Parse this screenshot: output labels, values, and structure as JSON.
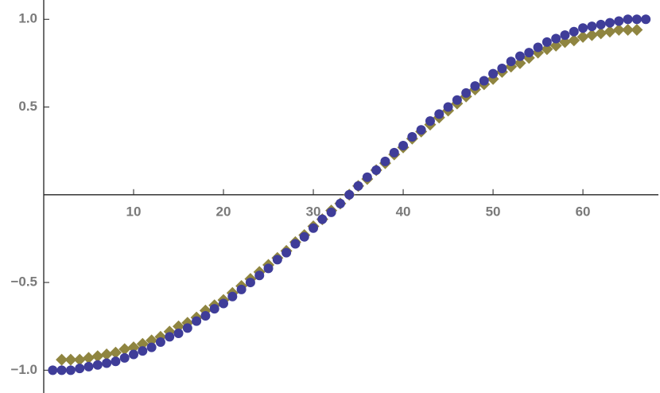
{
  "chart_data": {
    "type": "scatter",
    "xlim": [
      0,
      68.4
    ],
    "ylim": [
      -1.13,
      1.11
    ],
    "xticks": [
      10,
      20,
      30,
      40,
      50,
      60
    ],
    "yticks": [
      {
        "value": -1.0,
        "label": "−1.0"
      },
      {
        "value": -0.5,
        "label": "−0.5"
      },
      {
        "value": 0.5,
        "label": "0.5"
      },
      {
        "value": 1.0,
        "label": "1.0"
      }
    ],
    "series": [
      {
        "color": "#8f8540",
        "marker": "diamond",
        "x": [
          2,
          3,
          4,
          5,
          6,
          7,
          8,
          9,
          10,
          11,
          12,
          13,
          14,
          15,
          16,
          17,
          18,
          19,
          20,
          21,
          22,
          23,
          24,
          25,
          26,
          27,
          28,
          29,
          30,
          31,
          32,
          33,
          34,
          35,
          36,
          37,
          38,
          39,
          40,
          41,
          42,
          43,
          44,
          45,
          46,
          47,
          48,
          49,
          50,
          51,
          52,
          53,
          54,
          55,
          56,
          57,
          58,
          59,
          60,
          61,
          62,
          63,
          64,
          65,
          66
        ],
        "values": [
          -0.94,
          -0.94,
          -0.94,
          -0.93,
          -0.92,
          -0.91,
          -0.9,
          -0.88,
          -0.87,
          -0.85,
          -0.83,
          -0.81,
          -0.78,
          -0.75,
          -0.73,
          -0.7,
          -0.66,
          -0.63,
          -0.6,
          -0.56,
          -0.52,
          -0.48,
          -0.44,
          -0.4,
          -0.36,
          -0.32,
          -0.27,
          -0.23,
          -0.18,
          -0.14,
          -0.09,
          -0.05,
          0,
          0.05,
          0.09,
          0.14,
          0.18,
          0.23,
          0.27,
          0.32,
          0.36,
          0.4,
          0.44,
          0.48,
          0.52,
          0.56,
          0.6,
          0.63,
          0.66,
          0.7,
          0.73,
          0.75,
          0.78,
          0.81,
          0.83,
          0.85,
          0.87,
          0.88,
          0.9,
          0.91,
          0.92,
          0.93,
          0.94,
          0.94,
          0.94
        ]
      },
      {
        "color": "#3f3d99",
        "marker": "circle",
        "x": [
          1,
          2,
          3,
          4,
          5,
          6,
          7,
          8,
          9,
          10,
          11,
          12,
          13,
          14,
          15,
          16,
          17,
          18,
          19,
          20,
          21,
          22,
          23,
          24,
          25,
          26,
          27,
          28,
          29,
          30,
          31,
          32,
          33,
          34,
          35,
          36,
          37,
          38,
          39,
          40,
          41,
          42,
          43,
          44,
          45,
          46,
          47,
          48,
          49,
          50,
          51,
          52,
          53,
          54,
          55,
          56,
          57,
          58,
          59,
          60,
          61,
          62,
          63,
          64,
          65,
          66,
          67
        ],
        "values": [
          -1,
          -1,
          -1,
          -0.99,
          -0.98,
          -0.97,
          -0.96,
          -0.95,
          -0.93,
          -0.91,
          -0.89,
          -0.87,
          -0.84,
          -0.81,
          -0.79,
          -0.76,
          -0.72,
          -0.69,
          -0.65,
          -0.62,
          -0.58,
          -0.54,
          -0.5,
          -0.46,
          -0.42,
          -0.37,
          -0.33,
          -0.28,
          -0.24,
          -0.19,
          -0.14,
          -0.1,
          -0.05,
          0,
          0.05,
          0.1,
          0.14,
          0.19,
          0.24,
          0.28,
          0.33,
          0.37,
          0.42,
          0.46,
          0.5,
          0.54,
          0.58,
          0.62,
          0.65,
          0.69,
          0.72,
          0.76,
          0.79,
          0.81,
          0.84,
          0.87,
          0.89,
          0.91,
          0.93,
          0.95,
          0.96,
          0.97,
          0.98,
          0.99,
          1,
          1,
          1
        ]
      }
    ]
  }
}
